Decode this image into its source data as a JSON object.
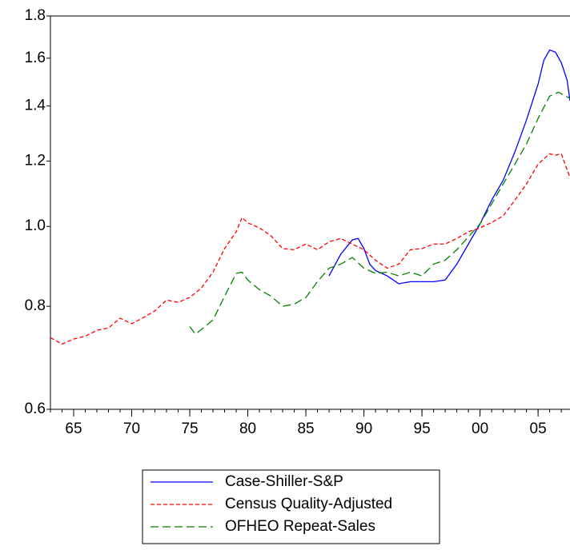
{
  "chart_data": {
    "type": "line",
    "log_scale_y": true,
    "xlim": [
      1963,
      2007.75
    ],
    "xticks": [
      {
        "value": 1965,
        "label": "65"
      },
      {
        "value": 1970,
        "label": "70"
      },
      {
        "value": 1975,
        "label": "75"
      },
      {
        "value": 1980,
        "label": "80"
      },
      {
        "value": 1985,
        "label": "85"
      },
      {
        "value": 1990,
        "label": "90"
      },
      {
        "value": 1995,
        "label": "95"
      },
      {
        "value": 2000,
        "label": "00"
      },
      {
        "value": 2005,
        "label": "05"
      }
    ],
    "ylim": [
      0.6,
      1.8
    ],
    "yticks": [
      0.6,
      0.8,
      {
        "value": 1.0,
        "label": "1.0"
      },
      1.2,
      1.4,
      1.6,
      1.8
    ],
    "legend": "bottom",
    "series": [
      {
        "name": "Case-Shiller-S&P",
        "color": "#0000ff",
        "x": [
          1987,
          1988,
          1989,
          1989.5,
          1990,
          1990.5,
          1991,
          1992,
          1993,
          1994,
          1995,
          1996,
          1997,
          1998,
          1999,
          2000,
          2001,
          2002,
          2003,
          2004,
          2005,
          2005.5,
          2006,
          2006.5,
          2007,
          2007.5,
          2007.75
        ],
        "values": [
          0.871,
          0.925,
          0.963,
          0.967,
          0.94,
          0.9,
          0.884,
          0.871,
          0.852,
          0.857,
          0.857,
          0.857,
          0.861,
          0.9,
          0.952,
          1.007,
          1.076,
          1.138,
          1.231,
          1.346,
          1.488,
          1.591,
          1.637,
          1.627,
          1.58,
          1.505,
          1.42
        ]
      },
      {
        "name": "Census Quality-Adjusted",
        "color": "#ff0000",
        "x": [
          1963,
          1964,
          1965,
          1966,
          1967,
          1968,
          1969,
          1970,
          1971,
          1972,
          1973,
          1974,
          1975,
          1976,
          1977,
          1978,
          1979,
          1979.5,
          1980,
          1981,
          1982,
          1983,
          1984,
          1985,
          1986,
          1987,
          1988,
          1989,
          1990,
          1991,
          1992,
          1993,
          1994,
          1995,
          1996,
          1997,
          1998,
          1999,
          2000,
          2001,
          2002,
          2003,
          2004,
          2005,
          2006,
          2006.5,
          2007,
          2007.75
        ],
        "values": [
          0.733,
          0.72,
          0.73,
          0.736,
          0.748,
          0.753,
          0.774,
          0.762,
          0.775,
          0.79,
          0.814,
          0.809,
          0.82,
          0.842,
          0.88,
          0.94,
          0.985,
          1.025,
          1.01,
          0.996,
          0.974,
          0.94,
          0.937,
          0.952,
          0.937,
          0.958,
          0.967,
          0.952,
          0.937,
          0.91,
          0.89,
          0.9,
          0.937,
          0.94,
          0.952,
          0.952,
          0.967,
          0.985,
          0.996,
          1.011,
          1.03,
          1.076,
          1.126,
          1.19,
          1.225,
          1.22,
          1.225,
          1.146
        ]
      },
      {
        "name": "OFHEO Repeat-Sales",
        "color": "#008000",
        "x": [
          1975,
          1975.5,
          1976,
          1977,
          1978,
          1979,
          1979.5,
          1980,
          1981,
          1982,
          1983,
          1984,
          1985,
          1986,
          1987,
          1988,
          1989,
          1990,
          1991,
          1992,
          1993,
          1994,
          1995,
          1996,
          1997,
          1998,
          1999,
          2000,
          2001,
          2002,
          2003,
          2004,
          2005,
          2006,
          2006.75,
          2007.75
        ],
        "values": [
          0.756,
          0.74,
          0.75,
          0.77,
          0.823,
          0.877,
          0.88,
          0.861,
          0.838,
          0.823,
          0.8,
          0.805,
          0.82,
          0.857,
          0.89,
          0.9,
          0.917,
          0.89,
          0.877,
          0.88,
          0.871,
          0.88,
          0.871,
          0.9,
          0.91,
          0.937,
          0.971,
          1.007,
          1.065,
          1.126,
          1.19,
          1.259,
          1.352,
          1.439,
          1.455,
          1.43
        ]
      }
    ]
  }
}
